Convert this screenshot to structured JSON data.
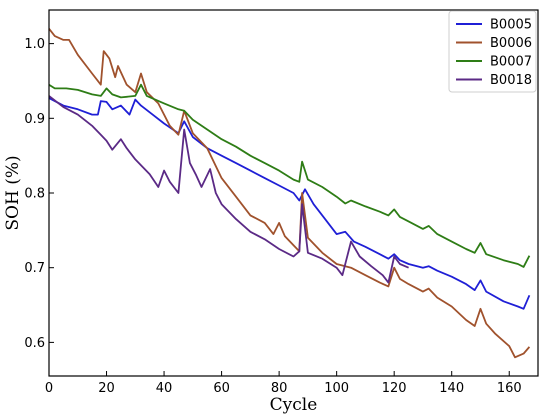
{
  "chart_data": {
    "type": "line",
    "title": "",
    "xlabel": "Cycle",
    "ylabel": "SOH (%)",
    "xlim": [
      0,
      170
    ],
    "ylim": [
      0.555,
      1.045
    ],
    "x_ticks": [
      "0",
      "20",
      "40",
      "60",
      "80",
      "100",
      "120",
      "140",
      "160"
    ],
    "y_ticks": [
      "0.6",
      "0.7",
      "0.8",
      "0.9",
      "1.0"
    ],
    "grid": false,
    "legend_position": "top-right",
    "series": [
      {
        "name": "B0005",
        "color": "#1f1fd6",
        "points": [
          [
            0,
            0.927
          ],
          [
            5,
            0.917
          ],
          [
            10,
            0.912
          ],
          [
            15,
            0.905
          ],
          [
            17,
            0.905
          ],
          [
            18,
            0.923
          ],
          [
            20,
            0.922
          ],
          [
            22,
            0.912
          ],
          [
            25,
            0.917
          ],
          [
            28,
            0.905
          ],
          [
            30,
            0.925
          ],
          [
            32,
            0.917
          ],
          [
            36,
            0.905
          ],
          [
            40,
            0.893
          ],
          [
            45,
            0.88
          ],
          [
            47,
            0.896
          ],
          [
            50,
            0.875
          ],
          [
            55,
            0.86
          ],
          [
            60,
            0.85
          ],
          [
            65,
            0.84
          ],
          [
            70,
            0.83
          ],
          [
            75,
            0.82
          ],
          [
            80,
            0.81
          ],
          [
            85,
            0.8
          ],
          [
            87,
            0.79
          ],
          [
            89,
            0.805
          ],
          [
            92,
            0.785
          ],
          [
            95,
            0.77
          ],
          [
            100,
            0.745
          ],
          [
            103,
            0.748
          ],
          [
            106,
            0.735
          ],
          [
            110,
            0.728
          ],
          [
            115,
            0.718
          ],
          [
            118,
            0.712
          ],
          [
            120,
            0.718
          ],
          [
            122,
            0.71
          ],
          [
            125,
            0.705
          ],
          [
            130,
            0.7
          ],
          [
            132,
            0.702
          ],
          [
            135,
            0.696
          ],
          [
            140,
            0.688
          ],
          [
            145,
            0.678
          ],
          [
            148,
            0.67
          ],
          [
            150,
            0.683
          ],
          [
            152,
            0.668
          ],
          [
            158,
            0.655
          ],
          [
            163,
            0.648
          ],
          [
            165,
            0.645
          ],
          [
            167,
            0.663
          ]
        ]
      },
      {
        "name": "B0006",
        "color": "#a0522d",
        "points": [
          [
            0,
            1.02
          ],
          [
            2,
            1.01
          ],
          [
            5,
            1.005
          ],
          [
            7,
            1.005
          ],
          [
            10,
            0.985
          ],
          [
            15,
            0.96
          ],
          [
            18,
            0.945
          ],
          [
            19,
            0.99
          ],
          [
            21,
            0.98
          ],
          [
            23,
            0.955
          ],
          [
            24,
            0.97
          ],
          [
            27,
            0.945
          ],
          [
            30,
            0.935
          ],
          [
            32,
            0.96
          ],
          [
            34,
            0.935
          ],
          [
            38,
            0.92
          ],
          [
            42,
            0.89
          ],
          [
            45,
            0.878
          ],
          [
            47,
            0.91
          ],
          [
            50,
            0.88
          ],
          [
            55,
            0.86
          ],
          [
            60,
            0.82
          ],
          [
            65,
            0.795
          ],
          [
            70,
            0.77
          ],
          [
            75,
            0.76
          ],
          [
            78,
            0.745
          ],
          [
            80,
            0.76
          ],
          [
            82,
            0.742
          ],
          [
            85,
            0.73
          ],
          [
            87,
            0.722
          ],
          [
            88,
            0.8
          ],
          [
            90,
            0.74
          ],
          [
            95,
            0.72
          ],
          [
            100,
            0.705
          ],
          [
            105,
            0.7
          ],
          [
            110,
            0.69
          ],
          [
            115,
            0.68
          ],
          [
            118,
            0.675
          ],
          [
            120,
            0.7
          ],
          [
            122,
            0.685
          ],
          [
            125,
            0.678
          ],
          [
            130,
            0.668
          ],
          [
            132,
            0.672
          ],
          [
            135,
            0.66
          ],
          [
            140,
            0.648
          ],
          [
            145,
            0.63
          ],
          [
            148,
            0.622
          ],
          [
            150,
            0.645
          ],
          [
            152,
            0.625
          ],
          [
            155,
            0.612
          ],
          [
            160,
            0.595
          ],
          [
            162,
            0.58
          ],
          [
            165,
            0.585
          ],
          [
            167,
            0.594
          ]
        ]
      },
      {
        "name": "B0007",
        "color": "#2e7d16",
        "points": [
          [
            0,
            0.945
          ],
          [
            2,
            0.94
          ],
          [
            6,
            0.94
          ],
          [
            10,
            0.938
          ],
          [
            15,
            0.932
          ],
          [
            18,
            0.93
          ],
          [
            20,
            0.94
          ],
          [
            22,
            0.932
          ],
          [
            25,
            0.928
          ],
          [
            30,
            0.93
          ],
          [
            32,
            0.945
          ],
          [
            34,
            0.93
          ],
          [
            40,
            0.92
          ],
          [
            45,
            0.912
          ],
          [
            47,
            0.91
          ],
          [
            50,
            0.898
          ],
          [
            55,
            0.885
          ],
          [
            60,
            0.872
          ],
          [
            65,
            0.862
          ],
          [
            70,
            0.85
          ],
          [
            75,
            0.84
          ],
          [
            80,
            0.83
          ],
          [
            85,
            0.818
          ],
          [
            87,
            0.815
          ],
          [
            88,
            0.842
          ],
          [
            90,
            0.818
          ],
          [
            95,
            0.808
          ],
          [
            100,
            0.795
          ],
          [
            103,
            0.786
          ],
          [
            105,
            0.79
          ],
          [
            110,
            0.782
          ],
          [
            115,
            0.775
          ],
          [
            118,
            0.77
          ],
          [
            120,
            0.778
          ],
          [
            122,
            0.768
          ],
          [
            125,
            0.762
          ],
          [
            130,
            0.752
          ],
          [
            132,
            0.756
          ],
          [
            135,
            0.745
          ],
          [
            140,
            0.735
          ],
          [
            145,
            0.725
          ],
          [
            148,
            0.72
          ],
          [
            150,
            0.733
          ],
          [
            152,
            0.718
          ],
          [
            158,
            0.71
          ],
          [
            163,
            0.705
          ],
          [
            165,
            0.701
          ],
          [
            167,
            0.716
          ]
        ]
      },
      {
        "name": "B0018",
        "color": "#5b2a86",
        "points": [
          [
            0,
            0.93
          ],
          [
            5,
            0.915
          ],
          [
            10,
            0.905
          ],
          [
            15,
            0.89
          ],
          [
            18,
            0.878
          ],
          [
            20,
            0.87
          ],
          [
            22,
            0.858
          ],
          [
            25,
            0.872
          ],
          [
            27,
            0.86
          ],
          [
            30,
            0.845
          ],
          [
            35,
            0.825
          ],
          [
            38,
            0.808
          ],
          [
            40,
            0.83
          ],
          [
            42,
            0.815
          ],
          [
            45,
            0.8
          ],
          [
            47,
            0.885
          ],
          [
            49,
            0.84
          ],
          [
            51,
            0.825
          ],
          [
            53,
            0.808
          ],
          [
            56,
            0.832
          ],
          [
            58,
            0.8
          ],
          [
            60,
            0.785
          ],
          [
            65,
            0.765
          ],
          [
            70,
            0.748
          ],
          [
            75,
            0.738
          ],
          [
            80,
            0.725
          ],
          [
            85,
            0.715
          ],
          [
            87,
            0.722
          ],
          [
            88,
            0.785
          ],
          [
            90,
            0.72
          ],
          [
            95,
            0.712
          ],
          [
            100,
            0.7
          ],
          [
            102,
            0.69
          ],
          [
            105,
            0.735
          ],
          [
            108,
            0.715
          ],
          [
            112,
            0.702
          ],
          [
            116,
            0.69
          ],
          [
            118,
            0.68
          ],
          [
            120,
            0.715
          ],
          [
            122,
            0.705
          ],
          [
            125,
            0.7
          ]
        ]
      }
    ]
  }
}
